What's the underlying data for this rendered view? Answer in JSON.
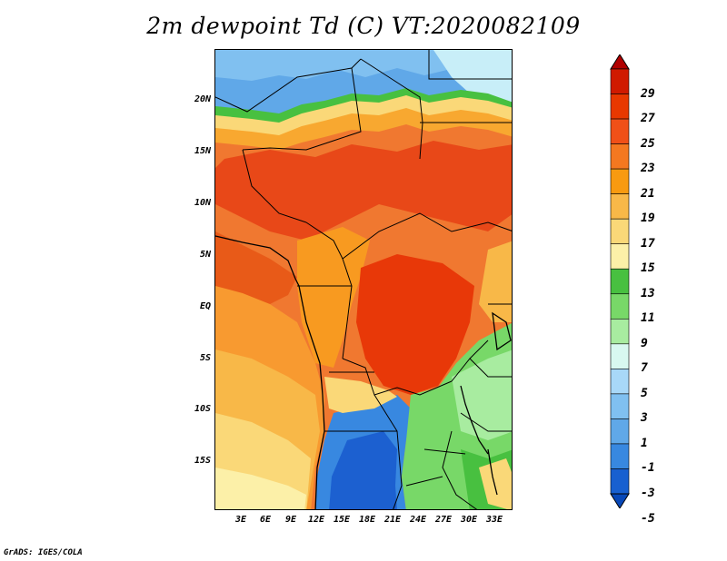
{
  "title": "2m dewpoint Td (C) VT:2020082109",
  "footer": "GrADS: IGES/COLA",
  "lat_axis": [
    "20N",
    "15N",
    "10N",
    "5N",
    "EQ",
    "5S",
    "10S",
    "15S"
  ],
  "lon_axis": [
    "3E",
    "6E",
    "9E",
    "12E",
    "15E",
    "18E",
    "21E",
    "24E",
    "27E",
    "30E",
    "33E"
  ],
  "colorbar": {
    "labels": [
      "29",
      "27",
      "25",
      "23",
      "21",
      "19",
      "17",
      "15",
      "13",
      "11",
      "9",
      "7",
      "5",
      "3",
      "1",
      "-1",
      "-3",
      "-5"
    ],
    "colors": [
      "#b00000",
      "#d01a00",
      "#e83800",
      "#f05018",
      "#f47820",
      "#f89a10",
      "#f8b848",
      "#fad878",
      "#fcf0a8",
      "#48c040",
      "#78d868",
      "#a8eca0",
      "#d8f8f0",
      "#a8d8f8",
      "#80c0f0",
      "#60a8e8",
      "#3888e0",
      "#1860d0",
      "#0848b8"
    ]
  },
  "colors": {
    "very_dry": "#1c60d0",
    "dry": "#70b0f0",
    "humid": "#f07830",
    "very_humid": "#e83808"
  }
}
